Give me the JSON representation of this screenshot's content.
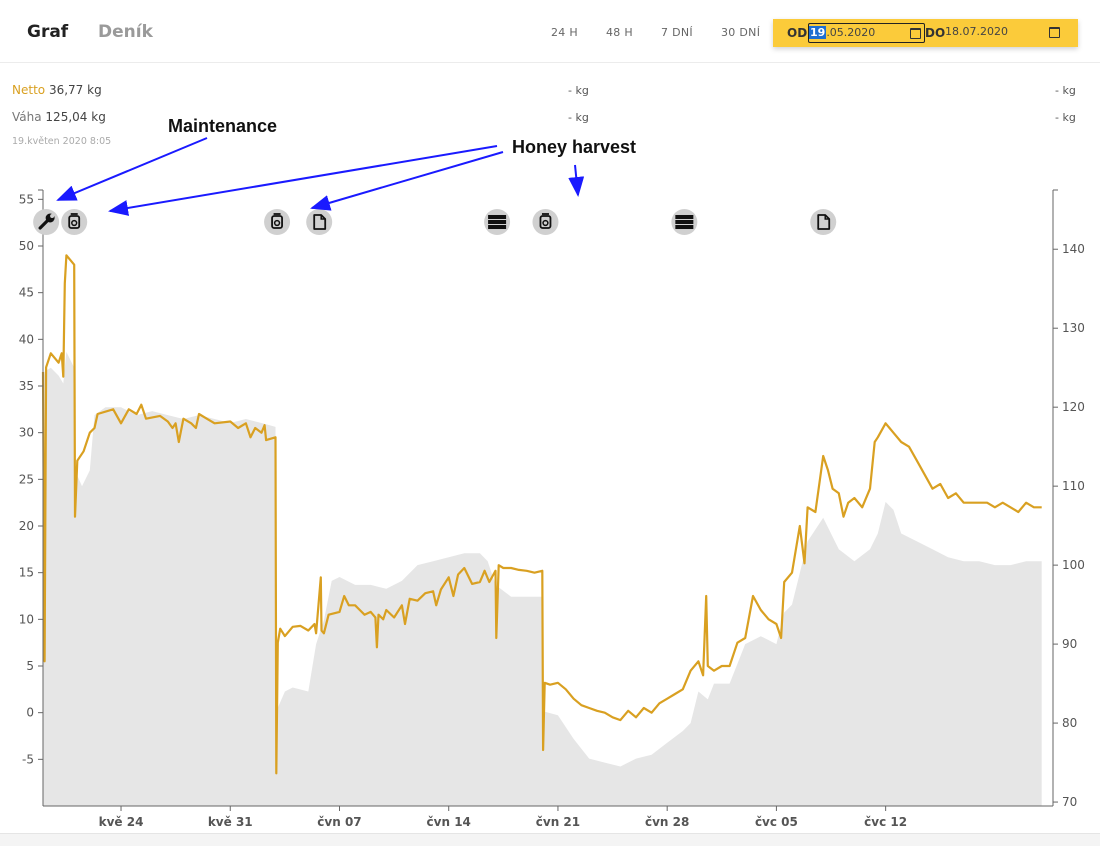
{
  "tabs": [
    {
      "label": "Graf",
      "active": true
    },
    {
      "label": "Deník",
      "active": false
    }
  ],
  "ranges": [
    "24 H",
    "48 H",
    "7 DNÍ",
    "30 DNÍ"
  ],
  "date_range": {
    "from_label": "OD",
    "from_day": "19",
    "from_rest": ".05.2020",
    "to_label": "DO",
    "to_value": "18.07.2020"
  },
  "summary": {
    "netto_label": "Netto",
    "netto_value": "36,77",
    "netto_unit": "kg",
    "vaha_label": "Váha",
    "vaha_value": "125,04",
    "vaha_unit": "kg",
    "timestamp": "19.květen 2020 8:05",
    "mid_netto": "- kg",
    "mid_vaha": "- kg",
    "right_netto": "- kg",
    "right_vaha": "- kg"
  },
  "annotations": {
    "maintenance": "Maintenance",
    "honey_harvest": "Honey harvest"
  },
  "colors": {
    "netto": "#d9a021",
    "vaha_fill": "#e6e6e6",
    "arrow": "#1a1aff",
    "icon_bg": "#d0d0d0"
  },
  "chart_data": {
    "type": "line",
    "x_tick_labels": [
      "kvě 24",
      "kvě 31",
      "čvn 07",
      "čvn 14",
      "čvn 21",
      "čvn 28",
      "čvc 05",
      "čvc 12"
    ],
    "x_tick_days": [
      5,
      12,
      19,
      26,
      33,
      40,
      47,
      54
    ],
    "x_range_days": [
      0,
      60
    ],
    "y_left": {
      "ticks": [
        -5,
        0,
        5,
        10,
        15,
        20,
        25,
        30,
        35,
        40,
        45,
        50,
        55
      ],
      "range": [
        -10,
        56
      ]
    },
    "y_right": {
      "ticks": [
        70,
        80,
        90,
        100,
        110,
        120,
        130,
        140
      ],
      "range": [
        69.5,
        147.5
      ]
    },
    "event_markers": [
      {
        "day": 0.2,
        "icon": "wrench-icon"
      },
      {
        "day": 2.0,
        "icon": "jar-icon"
      },
      {
        "day": 15.0,
        "icon": "jar-icon"
      },
      {
        "day": 17.7,
        "icon": "document-icon"
      },
      {
        "day": 29.1,
        "icon": "frames-icon"
      },
      {
        "day": 32.2,
        "icon": "jar-icon"
      },
      {
        "day": 41.1,
        "icon": "frames-icon"
      },
      {
        "day": 50.0,
        "icon": "document-icon"
      }
    ],
    "series": [
      {
        "name": "Netto",
        "axis": "left",
        "style": "line",
        "points": [
          [
            0,
            36.5
          ],
          [
            0.1,
            5.5
          ],
          [
            0.2,
            37
          ],
          [
            0.5,
            38.5
          ],
          [
            1.0,
            37.5
          ],
          [
            1.2,
            38.5
          ],
          [
            1.3,
            36
          ],
          [
            1.4,
            46
          ],
          [
            1.5,
            49
          ],
          [
            2.0,
            48
          ],
          [
            2.05,
            21
          ],
          [
            2.2,
            27
          ],
          [
            2.6,
            28
          ],
          [
            3.0,
            30
          ],
          [
            3.3,
            30.5
          ],
          [
            3.5,
            32
          ],
          [
            4.5,
            32.5
          ],
          [
            5.0,
            31
          ],
          [
            5.5,
            32.5
          ],
          [
            6.0,
            32
          ],
          [
            6.3,
            33
          ],
          [
            6.6,
            31.5
          ],
          [
            7.5,
            31.8
          ],
          [
            8.0,
            31.2
          ],
          [
            8.3,
            30.5
          ],
          [
            8.5,
            31
          ],
          [
            8.7,
            29
          ],
          [
            9.0,
            31.5
          ],
          [
            9.5,
            31
          ],
          [
            9.8,
            30.5
          ],
          [
            10.0,
            32
          ],
          [
            10.5,
            31.5
          ],
          [
            11.0,
            31
          ],
          [
            12.0,
            31.2
          ],
          [
            12.5,
            30.5
          ],
          [
            13.0,
            31
          ],
          [
            13.3,
            29.5
          ],
          [
            13.6,
            30.5
          ],
          [
            14.0,
            30
          ],
          [
            14.2,
            30.8
          ],
          [
            14.3,
            29.2
          ],
          [
            14.9,
            29.5
          ],
          [
            14.95,
            -6.5
          ],
          [
            15.05,
            7.5
          ],
          [
            15.2,
            9
          ],
          [
            15.5,
            8.2
          ],
          [
            16.0,
            9.2
          ],
          [
            16.5,
            9.3
          ],
          [
            17.0,
            8.8
          ],
          [
            17.4,
            9.5
          ],
          [
            17.5,
            8.5
          ],
          [
            17.8,
            14.5
          ],
          [
            17.85,
            8.8
          ],
          [
            18.0,
            8.5
          ],
          [
            18.3,
            10.5
          ],
          [
            19.0,
            10.8
          ],
          [
            19.3,
            12.5
          ],
          [
            19.6,
            11.5
          ],
          [
            20.0,
            11.5
          ],
          [
            20.3,
            11.0
          ],
          [
            20.6,
            10.5
          ],
          [
            21.0,
            10.8
          ],
          [
            21.3,
            10.2
          ],
          [
            21.4,
            7.0
          ],
          [
            21.5,
            10.5
          ],
          [
            21.8,
            10.0
          ],
          [
            22.0,
            11.0
          ],
          [
            22.5,
            10.2
          ],
          [
            23.0,
            11.5
          ],
          [
            23.2,
            9.5
          ],
          [
            23.5,
            12.2
          ],
          [
            24.0,
            12.0
          ],
          [
            24.5,
            12.8
          ],
          [
            25.0,
            13.0
          ],
          [
            25.2,
            11.5
          ],
          [
            25.5,
            13.2
          ],
          [
            26.0,
            14.5
          ],
          [
            26.3,
            12.5
          ],
          [
            26.6,
            14.8
          ],
          [
            27.0,
            15.5
          ],
          [
            27.5,
            13.8
          ],
          [
            28.0,
            14.0
          ],
          [
            28.3,
            15.2
          ],
          [
            28.6,
            14.0
          ],
          [
            29.0,
            15.2
          ],
          [
            29.05,
            8.0
          ],
          [
            29.2,
            15.8
          ],
          [
            29.5,
            15.5
          ],
          [
            30.0,
            15.5
          ],
          [
            30.5,
            15.3
          ],
          [
            31.0,
            15.2
          ],
          [
            31.5,
            15.0
          ],
          [
            32.0,
            15.2
          ],
          [
            32.05,
            -4.0
          ],
          [
            32.15,
            3.2
          ],
          [
            32.5,
            3.0
          ],
          [
            33.0,
            3.2
          ],
          [
            33.5,
            2.5
          ],
          [
            34.0,
            1.5
          ],
          [
            34.5,
            0.8
          ],
          [
            35.0,
            0.5
          ],
          [
            35.5,
            0.2
          ],
          [
            36.0,
            0.0
          ],
          [
            36.5,
            -0.5
          ],
          [
            37.0,
            -0.8
          ],
          [
            37.5,
            0.2
          ],
          [
            38.0,
            -0.5
          ],
          [
            38.5,
            0.5
          ],
          [
            39.0,
            0.0
          ],
          [
            39.5,
            1.0
          ],
          [
            40.0,
            1.5
          ],
          [
            40.5,
            2.0
          ],
          [
            41.0,
            2.5
          ],
          [
            41.5,
            4.5
          ],
          [
            42.0,
            5.5
          ],
          [
            42.3,
            4.0
          ],
          [
            42.5,
            12.5
          ],
          [
            42.6,
            5.0
          ],
          [
            43.0,
            4.5
          ],
          [
            43.5,
            5.0
          ],
          [
            44.0,
            5.0
          ],
          [
            44.5,
            7.5
          ],
          [
            45.0,
            8.0
          ],
          [
            45.5,
            12.5
          ],
          [
            46.0,
            11.0
          ],
          [
            46.5,
            10.0
          ],
          [
            47.0,
            9.5
          ],
          [
            47.3,
            8.0
          ],
          [
            47.5,
            14.0
          ],
          [
            48.0,
            15.0
          ],
          [
            48.5,
            20.0
          ],
          [
            48.8,
            16.0
          ],
          [
            49.0,
            22.0
          ],
          [
            49.5,
            21.5
          ],
          [
            50.0,
            27.5
          ],
          [
            50.3,
            26.0
          ],
          [
            50.6,
            24.0
          ],
          [
            51.0,
            23.5
          ],
          [
            51.3,
            21.0
          ],
          [
            51.6,
            22.5
          ],
          [
            52.0,
            23.0
          ],
          [
            52.5,
            22.0
          ],
          [
            53.0,
            24.0
          ],
          [
            53.3,
            29.0
          ],
          [
            53.5,
            29.5
          ],
          [
            54.0,
            31.0
          ],
          [
            54.5,
            30.0
          ],
          [
            55.0,
            29.0
          ],
          [
            55.5,
            28.5
          ],
          [
            56.0,
            27.0
          ],
          [
            56.5,
            25.5
          ],
          [
            57.0,
            24.0
          ],
          [
            57.5,
            24.5
          ],
          [
            58.0,
            23.0
          ],
          [
            58.5,
            23.5
          ],
          [
            59.0,
            22.5
          ],
          [
            59.5,
            22.5
          ],
          [
            60.0,
            22.5
          ],
          [
            60.5,
            22.5
          ],
          [
            61.0,
            22.0
          ],
          [
            61.5,
            22.5
          ],
          [
            62.0,
            22.0
          ],
          [
            62.5,
            21.5
          ],
          [
            63.0,
            22.5
          ],
          [
            63.5,
            22.0
          ],
          [
            64.0,
            22.0
          ]
        ]
      },
      {
        "name": "Váha",
        "axis": "right",
        "style": "area",
        "points": [
          [
            0,
            123
          ],
          [
            0.1,
            124.5
          ],
          [
            0.5,
            125
          ],
          [
            1.0,
            124
          ],
          [
            1.3,
            123
          ],
          [
            1.5,
            127
          ],
          [
            2.0,
            125
          ],
          [
            2.05,
            112
          ],
          [
            2.5,
            110
          ],
          [
            3.0,
            112
          ],
          [
            3.3,
            119
          ],
          [
            4.0,
            120
          ],
          [
            5.0,
            120
          ],
          [
            6.0,
            119
          ],
          [
            7.0,
            119.5
          ],
          [
            8.0,
            119
          ],
          [
            9.0,
            118.5
          ],
          [
            10.0,
            119
          ],
          [
            11.0,
            118.5
          ],
          [
            12.0,
            118
          ],
          [
            13.0,
            118.5
          ],
          [
            14.0,
            118
          ],
          [
            14.9,
            117.5
          ],
          [
            14.95,
            81.5
          ],
          [
            15.5,
            84
          ],
          [
            16.0,
            84.5
          ],
          [
            17.0,
            84
          ],
          [
            17.5,
            90
          ],
          [
            18.0,
            93
          ],
          [
            18.5,
            98
          ],
          [
            19.0,
            98.5
          ],
          [
            20.0,
            97.5
          ],
          [
            21.0,
            97.5
          ],
          [
            22.0,
            97
          ],
          [
            23.0,
            98
          ],
          [
            24.0,
            100
          ],
          [
            25.0,
            100.5
          ],
          [
            26.0,
            101
          ],
          [
            27.0,
            101.5
          ],
          [
            28.0,
            101.5
          ],
          [
            28.5,
            100.5
          ],
          [
            29.0,
            97.5
          ],
          [
            30.0,
            96
          ],
          [
            31.0,
            96
          ],
          [
            32.0,
            96
          ],
          [
            32.05,
            81.5
          ],
          [
            33.0,
            81
          ],
          [
            34.0,
            78
          ],
          [
            35.0,
            75.5
          ],
          [
            36.0,
            75
          ],
          [
            37.0,
            74.5
          ],
          [
            38.0,
            75.5
          ],
          [
            39.0,
            76
          ],
          [
            40.0,
            77.5
          ],
          [
            41.0,
            79
          ],
          [
            41.5,
            80
          ],
          [
            42.0,
            84
          ],
          [
            42.6,
            83
          ],
          [
            43.0,
            85
          ],
          [
            44.0,
            85
          ],
          [
            45.0,
            90
          ],
          [
            46.0,
            91
          ],
          [
            47.0,
            90
          ],
          [
            47.5,
            94
          ],
          [
            48.0,
            95
          ],
          [
            49.0,
            103
          ],
          [
            50.0,
            106
          ],
          [
            50.5,
            104
          ],
          [
            51.0,
            102
          ],
          [
            52.0,
            100.5
          ],
          [
            53.0,
            102
          ],
          [
            53.5,
            104
          ],
          [
            54.0,
            108
          ],
          [
            54.5,
            107
          ],
          [
            55.0,
            104
          ],
          [
            56.0,
            103
          ],
          [
            57.0,
            102
          ],
          [
            58.0,
            101
          ],
          [
            59.0,
            100.5
          ],
          [
            60.0,
            100.5
          ],
          [
            61.0,
            100
          ],
          [
            62.0,
            100
          ],
          [
            63.0,
            100.5
          ],
          [
            64.0,
            100.5
          ]
        ]
      }
    ]
  }
}
